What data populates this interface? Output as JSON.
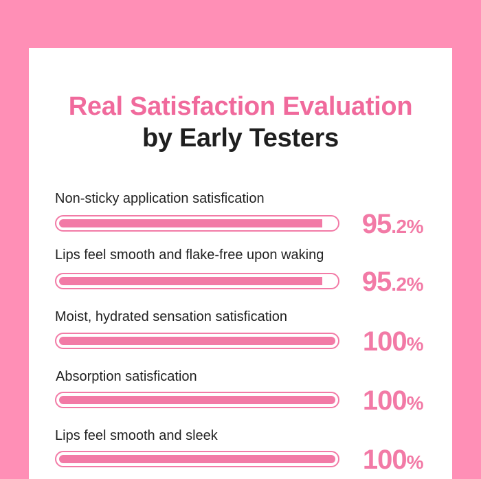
{
  "header": {
    "title_line1": "Real Satisfaction Evaluation",
    "title_line2": "by Early Testers"
  },
  "colors": {
    "background": "#ff8fb6",
    "card": "#ffffff",
    "accent": "#f27aa6",
    "title_pink": "#f06a9c",
    "text": "#222222"
  },
  "items": [
    {
      "label": "Non-sticky application satisfication",
      "value": 95.2,
      "pct_main": "95",
      "pct_small": ".2%"
    },
    {
      "label": "Lips feel smooth and flake-free upon waking",
      "value": 95.2,
      "pct_main": "95",
      "pct_small": ".2%"
    },
    {
      "label": "Moist, hydrated sensation satisfication",
      "value": 100,
      "pct_main": "100",
      "pct_small": "%"
    },
    {
      "label": "Absorption satisfication",
      "value": 100,
      "pct_main": "100",
      "pct_small": "%"
    },
    {
      "label": "Lips feel smooth and sleek",
      "value": 100,
      "pct_main": "100",
      "pct_small": "%"
    }
  ]
}
